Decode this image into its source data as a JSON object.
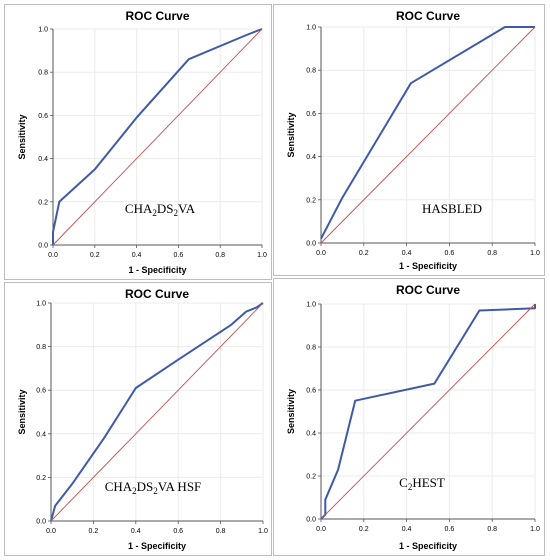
{
  "chart_data": [
    {
      "type": "line",
      "title": "ROC Curve",
      "xlabel": "1 - Specificity",
      "ylabel": "Sensitivity",
      "xlim": [
        0,
        1
      ],
      "ylim": [
        0,
        1
      ],
      "xticks": [
        "0.0",
        "0.2",
        "0.4",
        "0.6",
        "0.8",
        "1.0"
      ],
      "yticks": [
        "0.0",
        "0.2",
        "0.4",
        "0.6",
        "0.8",
        "1.0"
      ],
      "grid": true,
      "annotation": {
        "parts": [
          {
            "t": "CHA"
          },
          {
            "t": "2",
            "sub": true
          },
          {
            "t": "DS"
          },
          {
            "t": "2",
            "sub": true
          },
          {
            "t": "VA"
          }
        ]
      },
      "series": [
        {
          "role": "roc",
          "color": "#3f5aa8",
          "x": [
            0.0,
            0.0,
            0.03,
            0.2,
            0.4,
            0.65,
            0.92,
            1.0
          ],
          "y": [
            0.0,
            0.06,
            0.2,
            0.35,
            0.59,
            0.86,
            0.97,
            1.0
          ]
        },
        {
          "role": "reference",
          "color": "#c0504d",
          "x": [
            0,
            1
          ],
          "y": [
            0,
            1
          ]
        }
      ]
    },
    {
      "type": "line",
      "title": "ROC Curve",
      "xlabel": "1 - Specificity",
      "ylabel": "Sensitivity",
      "xlim": [
        0,
        1
      ],
      "ylim": [
        0,
        1
      ],
      "xticks": [
        "0.0",
        "0.2",
        "0.4",
        "0.6",
        "0.8",
        "1.0"
      ],
      "yticks": [
        "0.0",
        "0.2",
        "0.4",
        "0.6",
        "0.8",
        "1.0"
      ],
      "grid": true,
      "annotation": {
        "parts": [
          {
            "t": "HASBLED"
          }
        ]
      },
      "series": [
        {
          "role": "roc",
          "color": "#3f5aa8",
          "x": [
            0.0,
            0.1,
            0.42,
            0.86,
            1.0
          ],
          "y": [
            0.02,
            0.21,
            0.74,
            1.0,
            1.0
          ]
        },
        {
          "role": "reference",
          "color": "#c0504d",
          "x": [
            0,
            1
          ],
          "y": [
            0,
            1
          ]
        }
      ]
    },
    {
      "type": "line",
      "title": "ROC Curve",
      "xlabel": "1 - Specificity",
      "ylabel": "Sensitivity",
      "xlim": [
        0,
        1
      ],
      "ylim": [
        0,
        1
      ],
      "xticks": [
        "0.0",
        "0.2",
        "0.4",
        "0.6",
        "0.8",
        "1.0"
      ],
      "yticks": [
        "0.0",
        "0.2",
        "0.4",
        "0.6",
        "0.8",
        "1.0"
      ],
      "grid": true,
      "annotation": {
        "parts": [
          {
            "t": "CHA"
          },
          {
            "t": "2",
            "sub": true
          },
          {
            "t": "DS"
          },
          {
            "t": "2",
            "sub": true
          },
          {
            "t": "VA  HSF"
          }
        ]
      },
      "series": [
        {
          "role": "roc",
          "color": "#3f5aa8",
          "x": [
            0.0,
            0.02,
            0.1,
            0.25,
            0.4,
            0.6,
            0.85,
            0.92,
            0.97,
            1.0
          ],
          "y": [
            0.0,
            0.07,
            0.17,
            0.38,
            0.61,
            0.74,
            0.9,
            0.96,
            0.98,
            1.0
          ]
        },
        {
          "role": "reference",
          "color": "#c0504d",
          "x": [
            0,
            1
          ],
          "y": [
            0,
            1
          ]
        }
      ]
    },
    {
      "type": "line",
      "title": "ROC Curve",
      "xlabel": "1 - Specificity",
      "ylabel": "Sensitivity",
      "xlim": [
        0,
        1
      ],
      "ylim": [
        0,
        1
      ],
      "xticks": [
        "0.0",
        "0.2",
        "0.4",
        "0.6",
        "0.8",
        "1.0"
      ],
      "yticks": [
        "0.0",
        "0.2",
        "0.4",
        "0.6",
        "0.8",
        "1.0"
      ],
      "grid": true,
      "annotation": {
        "parts": [
          {
            "t": "C"
          },
          {
            "t": "2",
            "sub": true
          },
          {
            "t": "HEST"
          }
        ]
      },
      "series": [
        {
          "role": "roc",
          "color": "#3f5aa8",
          "x": [
            0.0,
            0.02,
            0.02,
            0.08,
            0.16,
            0.53,
            0.74,
            1.0,
            1.0
          ],
          "y": [
            0.0,
            0.02,
            0.09,
            0.23,
            0.55,
            0.63,
            0.97,
            0.98,
            1.0
          ]
        },
        {
          "role": "reference",
          "color": "#c0504d",
          "x": [
            0,
            1
          ],
          "y": [
            0,
            1
          ]
        }
      ]
    }
  ]
}
